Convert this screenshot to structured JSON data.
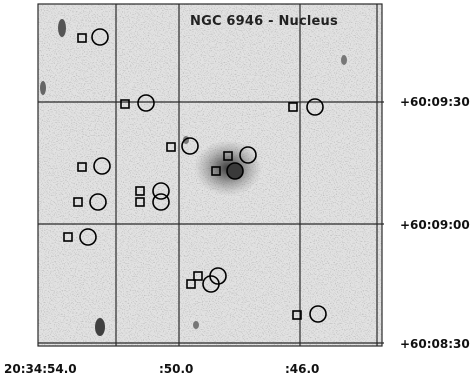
{
  "title": "NGC 6946 - Nucleus",
  "axes": {
    "ra_ticks": [
      {
        "label": "20:34:54.0"
      },
      {
        "label": ":50.0"
      },
      {
        "label": ":46.0"
      }
    ],
    "dec_ticks": [
      {
        "label": "+60:09:30"
      },
      {
        "label": "+60:09:00"
      },
      {
        "label": "+60:08:30"
      }
    ]
  },
  "colors": {
    "background": "#ffffff",
    "image_bg": "#c8c8c8",
    "grid": "#2a2a2a",
    "markers": "#000000"
  },
  "markers": {
    "square": "square-source-marker",
    "circle": "circle-source-marker"
  }
}
